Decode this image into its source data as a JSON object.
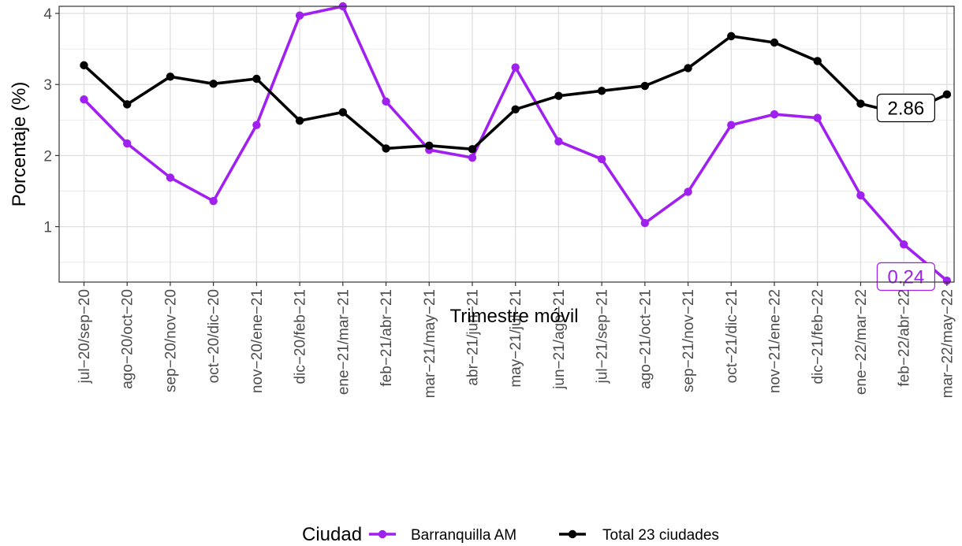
{
  "chart_data": {
    "type": "line",
    "title": "",
    "xlabel": "Trimestre móvil",
    "ylabel": "Porcentaje (%)",
    "ylim": [
      0.22,
      4.1
    ],
    "yticks": [
      1,
      2,
      3,
      4
    ],
    "grid": true,
    "legend_position": "bottom",
    "legend_title": "Ciudad",
    "categories": [
      "jul−20/sep−20",
      "ago−20/oct−20",
      "sep−20/nov−20",
      "oct−20/dic−20",
      "nov−20/ene−21",
      "dic−20/feb−21",
      "ene−21/mar−21",
      "feb−21/abr−21",
      "mar−21/may−21",
      "abr−21/jun−21",
      "may−21/jul−21",
      "jun−21/ago−21",
      "jul−21/sep−21",
      "ago−21/oct−21",
      "sep−21/nov−21",
      "oct−21/dic−21",
      "nov−21/ene−22",
      "dic−21/feb−22",
      "ene−22/mar−22",
      "feb−22/abr−22",
      "mar−22/may−22"
    ],
    "series": [
      {
        "name": "Barranquilla AM",
        "color": "#a020f0",
        "values": [
          2.79,
          2.17,
          1.69,
          1.36,
          2.43,
          3.97,
          4.1,
          2.76,
          2.08,
          1.97,
          3.24,
          2.2,
          1.95,
          1.05,
          1.49,
          2.43,
          2.58,
          2.53,
          1.44,
          0.75,
          0.24
        ],
        "end_label": "0.24"
      },
      {
        "name": "Total 23 ciudades",
        "color": "#000000",
        "values": [
          3.27,
          2.72,
          3.11,
          3.01,
          3.08,
          2.49,
          2.61,
          2.1,
          2.14,
          2.09,
          2.65,
          2.84,
          2.91,
          2.98,
          3.23,
          3.68,
          3.59,
          3.33,
          2.73,
          2.58,
          2.86
        ],
        "end_label": "2.86"
      }
    ]
  }
}
